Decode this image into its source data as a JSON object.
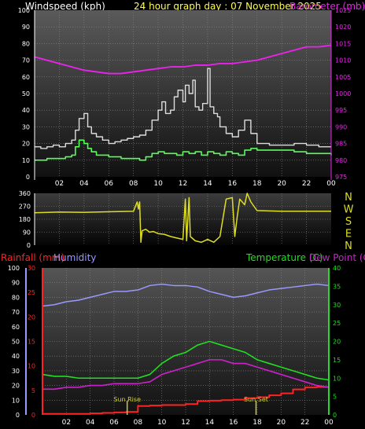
{
  "header": {
    "left_title": "Windspeed (kph)",
    "center_title": "24 hour graph day : 07 November 2025",
    "right_title": "Barometer (mb)"
  },
  "colors": {
    "windspeed": "#dddddd",
    "wind_avg": "#55ff55",
    "barometer": "#ee22ee",
    "direction": "#dddd22",
    "rainfall": "#ff2222",
    "humidity": "#9999ff",
    "temperature": "#22dd22",
    "dewpoint": "#cc22cc",
    "sun_marker": "#cccc33"
  },
  "chart_data": [
    {
      "type": "line",
      "panel": "wind-barometer",
      "left_axis": {
        "label": "Windspeed (kph)",
        "ylim": [
          0,
          100
        ],
        "ticks": [
          "0",
          "10",
          "20",
          "30",
          "40",
          "50",
          "60",
          "70",
          "80",
          "90",
          "100"
        ]
      },
      "right_axis": {
        "label": "Barometer (mb)",
        "ylim": [
          975,
          1025
        ],
        "ticks": [
          "975",
          "980",
          "985",
          "990",
          "995",
          "1000",
          "1005",
          "1010",
          "1015",
          "1020",
          "1025"
        ]
      },
      "x_ticks": [
        "02",
        "04",
        "06",
        "08",
        "10",
        "12",
        "14",
        "16",
        "18",
        "20",
        "22",
        "00"
      ],
      "xlim": [
        0,
        24
      ],
      "grid": true,
      "series": [
        {
          "key": "gust",
          "axis": "left",
          "x": [
            0,
            0.5,
            1,
            1.5,
            2,
            2.5,
            3,
            3.3,
            3.6,
            4,
            4.3,
            4.6,
            5,
            5.5,
            6,
            6.5,
            7,
            7.5,
            8,
            8.5,
            9,
            9.5,
            10,
            10.3,
            10.6,
            11,
            11.3,
            11.6,
            12,
            12.2,
            12.5,
            12.8,
            13,
            13.3,
            13.6,
            14,
            14.2,
            14.5,
            14.8,
            15,
            15.5,
            16,
            16.5,
            17,
            17.5,
            18,
            19,
            20,
            21,
            22,
            23,
            24
          ],
          "y": [
            18,
            17,
            18,
            19,
            18,
            20,
            22,
            28,
            35,
            38,
            30,
            26,
            24,
            22,
            20,
            21,
            22,
            23,
            24,
            25,
            28,
            34,
            40,
            45,
            38,
            40,
            48,
            52,
            45,
            55,
            50,
            58,
            42,
            40,
            44,
            65,
            42,
            38,
            36,
            30,
            26,
            24,
            28,
            34,
            26,
            20,
            19,
            19,
            20,
            19,
            18,
            18
          ]
        },
        {
          "key": "wind_avg",
          "axis": "left",
          "x": [
            0,
            0.5,
            1,
            1.5,
            2,
            2.5,
            3,
            3.3,
            3.6,
            4,
            4.3,
            4.6,
            5,
            5.5,
            6,
            6.5,
            7,
            7.5,
            8,
            8.5,
            9,
            9.5,
            10,
            10.5,
            11,
            11.5,
            12,
            12.5,
            13,
            13.5,
            14,
            14.5,
            15,
            15.5,
            16,
            16.5,
            17,
            17.5,
            18,
            19,
            20,
            21,
            22,
            23,
            24
          ],
          "y": [
            10,
            10,
            11,
            11,
            11,
            12,
            13,
            18,
            22,
            20,
            17,
            15,
            13,
            13,
            12,
            12,
            11,
            11,
            11,
            10,
            12,
            14,
            15,
            14,
            14,
            13,
            15,
            14,
            15,
            13,
            15,
            14,
            13,
            15,
            14,
            13,
            16,
            17,
            16,
            16,
            16,
            15,
            14,
            14,
            13
          ]
        },
        {
          "key": "barometer",
          "axis": "right",
          "x": [
            0,
            1,
            2,
            3,
            4,
            5,
            6,
            7,
            8,
            9,
            10,
            11,
            12,
            13,
            14,
            15,
            16,
            17,
            18,
            19,
            20,
            21,
            22,
            23,
            24
          ],
          "y": [
            1011,
            1010,
            1009,
            1008,
            1007,
            1006.5,
            1006,
            1006,
            1006.5,
            1007,
            1007.5,
            1008,
            1008,
            1008.5,
            1008.5,
            1009,
            1009,
            1009.5,
            1010,
            1011,
            1012,
            1013,
            1014,
            1014,
            1014.5
          ]
        }
      ]
    },
    {
      "type": "line",
      "panel": "wind-direction",
      "left_axis": {
        "ylim": [
          0,
          360
        ],
        "ticks": [
          "0",
          "90",
          "180",
          "270",
          "360"
        ]
      },
      "right_axis": {
        "ticks": [
          "N",
          "W",
          "S",
          "E",
          "N"
        ]
      },
      "xlim": [
        0,
        24
      ],
      "grid": true,
      "series": [
        {
          "key": "direction",
          "x": [
            0,
            2,
            4,
            6,
            8,
            8.3,
            8.4,
            8.5,
            8.6,
            8.7,
            9,
            9.3,
            9.6,
            10,
            10.5,
            11,
            11.5,
            12,
            12.2,
            12.3,
            12.5,
            12.6,
            13,
            13.5,
            14,
            14.5,
            15,
            15.5,
            16,
            16.2,
            16.4,
            16.6,
            17,
            17.2,
            17.5,
            18,
            20,
            22,
            24
          ],
          "y": [
            225,
            230,
            228,
            232,
            235,
            300,
            250,
            300,
            20,
            100,
            110,
            90,
            95,
            80,
            75,
            60,
            50,
            40,
            320,
            30,
            330,
            60,
            30,
            20,
            40,
            20,
            60,
            320,
            330,
            60,
            200,
            320,
            280,
            360,
            300,
            240,
            235,
            235,
            235
          ]
        }
      ]
    },
    {
      "type": "line",
      "panel": "rain-humidity-temperature",
      "left_axis_rain": {
        "label": "Rainfall (mm)",
        "ylim": [
          0,
          30
        ],
        "ticks": [
          "0",
          "5",
          "10",
          "15",
          "20",
          "25",
          "30"
        ]
      },
      "left_axis_humidity": {
        "label": "Humidity",
        "ylim": [
          0,
          100
        ],
        "ticks": [
          "0",
          "10",
          "20",
          "30",
          "40",
          "50",
          "60",
          "70",
          "80",
          "90",
          "100"
        ]
      },
      "right_axis": {
        "label": "Temperature (C)",
        "ylim": [
          0,
          40
        ],
        "ticks": [
          "0",
          "5",
          "10",
          "15",
          "20",
          "25",
          "30",
          "35",
          "40"
        ]
      },
      "right_label_2": "Dew Point (C)",
      "xlim": [
        0,
        24
      ],
      "grid": true,
      "annotations": [
        {
          "text": "Sun Rise",
          "x": 7.1
        },
        {
          "text": "Sun Set",
          "x": 17.9
        }
      ],
      "series": [
        {
          "key": "rainfall",
          "axis": "rain",
          "x": [
            0,
            1,
            2,
            3,
            4,
            5,
            6,
            7,
            8,
            9,
            10,
            11,
            12,
            13,
            14,
            15,
            16,
            17,
            18,
            19,
            20,
            21,
            22,
            23,
            23.9,
            24
          ],
          "y": [
            0.2,
            0.2,
            0.2,
            0.2,
            0.3,
            0.4,
            0.5,
            0.6,
            1.8,
            1.9,
            2.0,
            2.0,
            2.2,
            2.8,
            2.9,
            3.0,
            3.1,
            3.4,
            3.6,
            4.0,
            4.4,
            5.2,
            5.6,
            5.7,
            5.7,
            0
          ]
        },
        {
          "key": "humidity",
          "axis": "humidity",
          "x": [
            0,
            1,
            2,
            3,
            4,
            5,
            6,
            7,
            8,
            9,
            10,
            11,
            12,
            13,
            14,
            15,
            16,
            17,
            18,
            19,
            20,
            21,
            22,
            23,
            24
          ],
          "y": [
            74,
            75,
            77,
            78,
            80,
            82,
            84,
            84,
            85,
            88,
            89,
            88,
            88,
            87,
            84,
            82,
            80,
            81,
            83,
            85,
            86,
            87,
            88,
            89,
            88
          ]
        },
        {
          "key": "temperature",
          "axis": "temp",
          "x": [
            0,
            1,
            2,
            3,
            4,
            5,
            6,
            7,
            8,
            9,
            10,
            11,
            12,
            13,
            14,
            15,
            16,
            17,
            18,
            19,
            20,
            21,
            22,
            23,
            24
          ],
          "y": [
            11,
            10.5,
            10.5,
            10,
            10,
            10,
            10,
            10,
            10,
            11,
            14,
            16,
            17,
            19,
            20,
            19,
            18,
            17,
            15,
            14,
            13,
            12,
            11,
            10,
            9.5
          ]
        },
        {
          "key": "dewpoint",
          "axis": "temp",
          "x": [
            0,
            1,
            2,
            3,
            4,
            5,
            6,
            7,
            8,
            9,
            10,
            11,
            12,
            13,
            14,
            15,
            16,
            17,
            18,
            19,
            20,
            21,
            22,
            23,
            24
          ],
          "y": [
            7,
            7,
            7.5,
            7.5,
            8,
            8,
            8.5,
            8.5,
            8.5,
            9,
            11,
            12,
            13,
            14,
            15,
            15,
            14,
            14,
            13,
            12,
            11,
            10,
            9,
            8,
            7.5
          ]
        }
      ]
    }
  ]
}
